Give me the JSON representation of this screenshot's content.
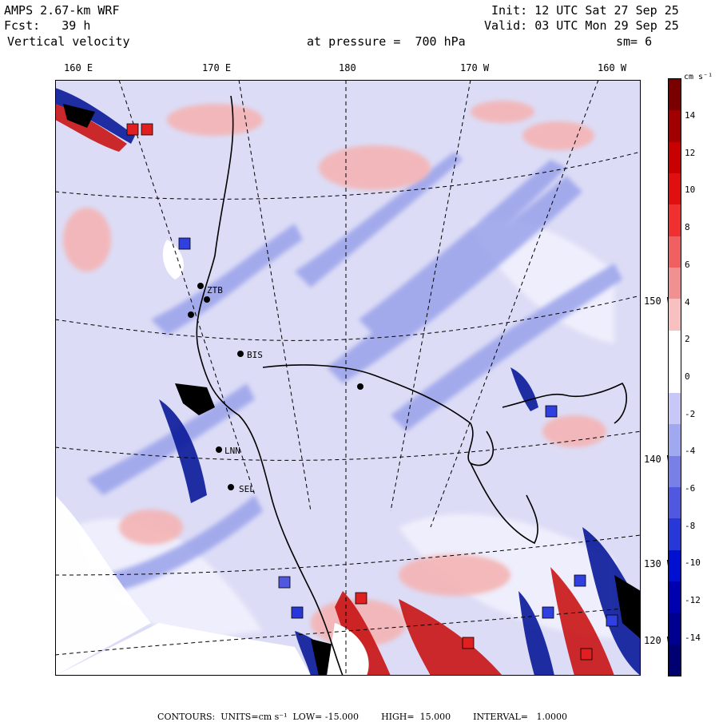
{
  "header": {
    "model": "AMPS 2.67-km WRF",
    "forecast": "Fcst:   39 h",
    "field": "Vertical velocity",
    "init": "Init: 12 UTC Sat 27 Sep 25",
    "valid": "Valid: 03 UTC Mon 29 Sep 25",
    "pressure": "at pressure =  700 hPa",
    "smoothing": "sm= 6"
  },
  "lon_labels": [
    "160 E",
    "170 E",
    "180",
    "170 W",
    "160 W"
  ],
  "lat_labels": [
    "150 W",
    "140 W",
    "130 W",
    "120 W"
  ],
  "stations": [
    "ZTB",
    "BIS",
    "LNN",
    "SEL"
  ],
  "colorbar": {
    "units_label": "cm s⁻¹",
    "tick_values": [
      "14",
      "12",
      "10",
      "8",
      "6",
      "4",
      "2",
      "0",
      "-2",
      "-4",
      "-6",
      "-8",
      "-10",
      "-12",
      "-14"
    ],
    "colors": [
      "#7a0000",
      "#a00000",
      "#c80000",
      "#e01010",
      "#f03030",
      "#f06060",
      "#f09090",
      "#f8c0c0",
      "#ffffff",
      "#ffffff",
      "#c8c8f8",
      "#a0a8f0",
      "#7880e8",
      "#5058e0",
      "#2838d8",
      "#0010d0",
      "#0000b0",
      "#000090",
      "#000070"
    ]
  },
  "footer": {
    "contours": "CONTOURS:  UNITS=cm s⁻¹  LOW= -15.000",
    "high": "HIGH=  15.000",
    "interval": "INTERVAL=   1.0000"
  }
}
